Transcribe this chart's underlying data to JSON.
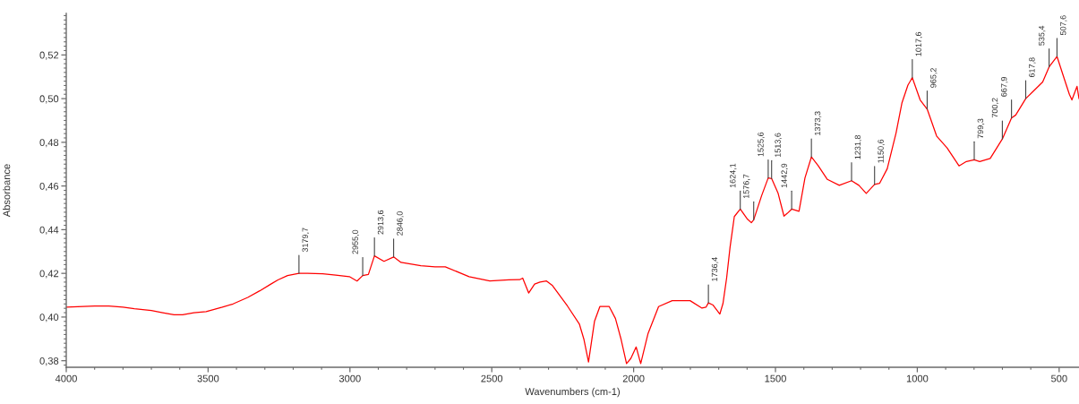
{
  "chart_data": {
    "type": "line",
    "xlabel": "Wavenumbers (cm-1)",
    "ylabel": "Absorbance",
    "xlim": [
      4000,
      430
    ],
    "ylim": [
      0.377,
      0.539
    ],
    "xticks": [
      4000,
      {
        "value": 3900,
        "label": null
      },
      {
        "value": 3800,
        "label": null
      },
      {
        "value": 3700,
        "label": null
      },
      {
        "value": 3600,
        "label": null
      },
      3500,
      {
        "value": 3400,
        "label": null
      },
      {
        "value": 3300,
        "label": null
      },
      {
        "value": 3200,
        "label": null
      },
      {
        "value": 3100,
        "label": null
      },
      3000,
      {
        "value": 2900,
        "label": null
      },
      {
        "value": 2800,
        "label": null
      },
      {
        "value": 2700,
        "label": null
      },
      {
        "value": 2600,
        "label": null
      },
      2500,
      {
        "value": 2400,
        "label": null
      },
      {
        "value": 2300,
        "label": null
      },
      {
        "value": 2200,
        "label": null
      },
      {
        "value": 2100,
        "label": null
      },
      2000,
      {
        "value": 1900,
        "label": null
      },
      {
        "value": 1800,
        "label": null
      },
      {
        "value": 1700,
        "label": null
      },
      {
        "value": 1600,
        "label": null
      },
      1500,
      {
        "value": 1400,
        "label": null
      },
      {
        "value": 1300,
        "label": null
      },
      {
        "value": 1200,
        "label": null
      },
      {
        "value": 1100,
        "label": null
      },
      1000,
      {
        "value": 900,
        "label": null
      },
      {
        "value": 800,
        "label": null
      },
      {
        "value": 700,
        "label": null
      },
      {
        "value": 600,
        "label": null
      },
      500
    ],
    "yticks": [
      {
        "value": 0.378,
        "label": null
      },
      {
        "value": 0.38,
        "label": "0,38"
      },
      {
        "value": 0.382,
        "label": null
      },
      {
        "value": 0.384,
        "label": null
      },
      {
        "value": 0.386,
        "label": null
      },
      {
        "value": 0.388,
        "label": null
      },
      {
        "value": 0.39,
        "label": null
      },
      {
        "value": 0.392,
        "label": null
      },
      {
        "value": 0.394,
        "label": null
      },
      {
        "value": 0.396,
        "label": null
      },
      {
        "value": 0.398,
        "label": null
      },
      {
        "value": 0.4,
        "label": "0,40"
      },
      {
        "value": 0.402,
        "label": null
      },
      {
        "value": 0.404,
        "label": null
      },
      {
        "value": 0.406,
        "label": null
      },
      {
        "value": 0.408,
        "label": null
      },
      {
        "value": 0.41,
        "label": null
      },
      {
        "value": 0.412,
        "label": null
      },
      {
        "value": 0.414,
        "label": null
      },
      {
        "value": 0.416,
        "label": null
      },
      {
        "value": 0.418,
        "label": null
      },
      {
        "value": 0.42,
        "label": "0,42"
      },
      {
        "value": 0.422,
        "label": null
      },
      {
        "value": 0.424,
        "label": null
      },
      {
        "value": 0.426,
        "label": null
      },
      {
        "value": 0.428,
        "label": null
      },
      {
        "value": 0.43,
        "label": null
      },
      {
        "value": 0.432,
        "label": null
      },
      {
        "value": 0.434,
        "label": null
      },
      {
        "value": 0.436,
        "label": null
      },
      {
        "value": 0.438,
        "label": null
      },
      {
        "value": 0.44,
        "label": "0,44"
      },
      {
        "value": 0.442,
        "label": null
      },
      {
        "value": 0.444,
        "label": null
      },
      {
        "value": 0.446,
        "label": null
      },
      {
        "value": 0.448,
        "label": null
      },
      {
        "value": 0.45,
        "label": null
      },
      {
        "value": 0.452,
        "label": null
      },
      {
        "value": 0.454,
        "label": null
      },
      {
        "value": 0.456,
        "label": null
      },
      {
        "value": 0.458,
        "label": null
      },
      {
        "value": 0.46,
        "label": "0,46"
      },
      {
        "value": 0.462,
        "label": null
      },
      {
        "value": 0.464,
        "label": null
      },
      {
        "value": 0.466,
        "label": null
      },
      {
        "value": 0.468,
        "label": null
      },
      {
        "value": 0.47,
        "label": null
      },
      {
        "value": 0.472,
        "label": null
      },
      {
        "value": 0.474,
        "label": null
      },
      {
        "value": 0.476,
        "label": null
      },
      {
        "value": 0.478,
        "label": null
      },
      {
        "value": 0.48,
        "label": "0,48"
      },
      {
        "value": 0.482,
        "label": null
      },
      {
        "value": 0.484,
        "label": null
      },
      {
        "value": 0.486,
        "label": null
      },
      {
        "value": 0.488,
        "label": null
      },
      {
        "value": 0.49,
        "label": null
      },
      {
        "value": 0.492,
        "label": null
      },
      {
        "value": 0.494,
        "label": null
      },
      {
        "value": 0.496,
        "label": null
      },
      {
        "value": 0.498,
        "label": null
      },
      {
        "value": 0.5,
        "label": "0,50"
      },
      {
        "value": 0.502,
        "label": null
      },
      {
        "value": 0.504,
        "label": null
      },
      {
        "value": 0.506,
        "label": null
      },
      {
        "value": 0.508,
        "label": null
      },
      {
        "value": 0.51,
        "label": null
      },
      {
        "value": 0.512,
        "label": null
      },
      {
        "value": 0.514,
        "label": null
      },
      {
        "value": 0.516,
        "label": null
      },
      {
        "value": 0.518,
        "label": null
      },
      {
        "value": 0.52,
        "label": "0,52"
      },
      {
        "value": 0.522,
        "label": null
      },
      {
        "value": 0.524,
        "label": null
      },
      {
        "value": 0.526,
        "label": null
      },
      {
        "value": 0.528,
        "label": null
      },
      {
        "value": 0.53,
        "label": null
      },
      {
        "value": 0.532,
        "label": null
      },
      {
        "value": 0.534,
        "label": null
      },
      {
        "value": 0.536,
        "label": null
      },
      {
        "value": 0.538,
        "label": null
      }
    ],
    "x": [
      4000,
      3900,
      3850,
      3800,
      3760,
      3700,
      3660,
      3620,
      3590,
      3550,
      3507,
      3450,
      3412,
      3360,
      3318,
      3280,
      3254,
      3220,
      3179.7,
      3150,
      3096,
      3050,
      3002,
      2975,
      2955,
      2935,
      2913.6,
      2880,
      2846,
      2820,
      2750,
      2700,
      2664,
      2580,
      2507,
      2440,
      2402,
      2391,
      2370,
      2349,
      2330,
      2307,
      2286,
      2233,
      2191,
      2175,
      2159,
      2138,
      2119,
      2086,
      2064,
      2044,
      2025,
      2010,
      1991,
      1975,
      1949,
      1912,
      1864,
      1801,
      1759,
      1745,
      1736.4,
      1720,
      1696,
      1685,
      1672,
      1660,
      1645,
      1624.1,
      1600,
      1585,
      1576.7,
      1549,
      1525.6,
      1513.6,
      1491,
      1470,
      1458,
      1442.9,
      1417,
      1396,
      1373.3,
      1349,
      1317,
      1275,
      1231.8,
      1206,
      1180,
      1150.6,
      1133,
      1106,
      1075,
      1054,
      1033,
      1017.6,
      990,
      965.2,
      932,
      895,
      853,
      827,
      799.3,
      780,
      743,
      700.2,
      667.9,
      653,
      617.8,
      590,
      558,
      535.4,
      507.6,
      485,
      464,
      455,
      437,
      430
    ],
    "series": [
      {
        "color": "#ff0000",
        "values": [
          0.4045,
          0.405,
          0.405,
          0.4045,
          0.4038,
          0.403,
          0.402,
          0.401,
          0.401,
          0.402,
          0.4025,
          0.4045,
          0.406,
          0.409,
          0.412,
          0.415,
          0.417,
          0.419,
          0.42,
          0.42,
          0.4198,
          0.4192,
          0.4185,
          0.4165,
          0.419,
          0.4195,
          0.428,
          0.4255,
          0.4275,
          0.425,
          0.4235,
          0.423,
          0.423,
          0.4185,
          0.4165,
          0.417,
          0.4171,
          0.4178,
          0.411,
          0.4151,
          0.416,
          0.4165,
          0.4144,
          0.405,
          0.3967,
          0.3897,
          0.3794,
          0.398,
          0.4048,
          0.4048,
          0.3993,
          0.3897,
          0.3787,
          0.381,
          0.3863,
          0.3787,
          0.3925,
          0.4048,
          0.4075,
          0.4075,
          0.4041,
          0.4045,
          0.4065,
          0.4055,
          0.4014,
          0.4062,
          0.418,
          0.432,
          0.446,
          0.4494,
          0.445,
          0.4432,
          0.4445,
          0.4555,
          0.4637,
          0.4634,
          0.4568,
          0.4462,
          0.4475,
          0.4494,
          0.4484,
          0.4637,
          0.4733,
          0.4692,
          0.463,
          0.4603,
          0.4624,
          0.4603,
          0.4566,
          0.4607,
          0.4612,
          0.4679,
          0.4842,
          0.4981,
          0.5062,
          0.5096,
          0.4994,
          0.4952,
          0.4829,
          0.4774,
          0.4692,
          0.4712,
          0.472,
          0.4712,
          0.4726,
          0.4815,
          0.4911,
          0.4925,
          0.5,
          0.5035,
          0.5076,
          0.5145,
          0.5193,
          0.5103,
          0.502,
          0.4994,
          0.5056,
          0.5
        ]
      }
    ],
    "annotations": [
      {
        "text": "3179,7",
        "x": 3179.7,
        "y": 0.42
      },
      {
        "text": "2955,0",
        "x": 2955,
        "y": 0.419
      },
      {
        "text": "2913,6",
        "x": 2913.6,
        "y": 0.428
      },
      {
        "text": "2846,0",
        "x": 2846,
        "y": 0.4275
      },
      {
        "text": "1736,4",
        "x": 1736.4,
        "y": 0.4065
      },
      {
        "text": "1624,1",
        "x": 1624.1,
        "y": 0.4494
      },
      {
        "text": "1576,7",
        "x": 1576.7,
        "y": 0.4445
      },
      {
        "text": "1525,6",
        "x": 1525.6,
        "y": 0.4637
      },
      {
        "text": "1513,6",
        "x": 1513.6,
        "y": 0.4634
      },
      {
        "text": "1442,9",
        "x": 1442.9,
        "y": 0.4494
      },
      {
        "text": "1373,3",
        "x": 1373.3,
        "y": 0.4733
      },
      {
        "text": "1231,8",
        "x": 1231.8,
        "y": 0.4624
      },
      {
        "text": "1150,6",
        "x": 1150.6,
        "y": 0.4607
      },
      {
        "text": "1017,6",
        "x": 1017.6,
        "y": 0.5096
      },
      {
        "text": "965,2",
        "x": 965.2,
        "y": 0.4952
      },
      {
        "text": "799,3",
        "x": 799.3,
        "y": 0.472
      },
      {
        "text": "700,2",
        "x": 700.2,
        "y": 0.4815
      },
      {
        "text": "667,9",
        "x": 667.9,
        "y": 0.4911
      },
      {
        "text": "617,8",
        "x": 617.8,
        "y": 0.5
      },
      {
        "text": "535,4",
        "x": 535.4,
        "y": 0.5145
      },
      {
        "text": "507,6",
        "x": 507.6,
        "y": 0.5193
      }
    ]
  }
}
